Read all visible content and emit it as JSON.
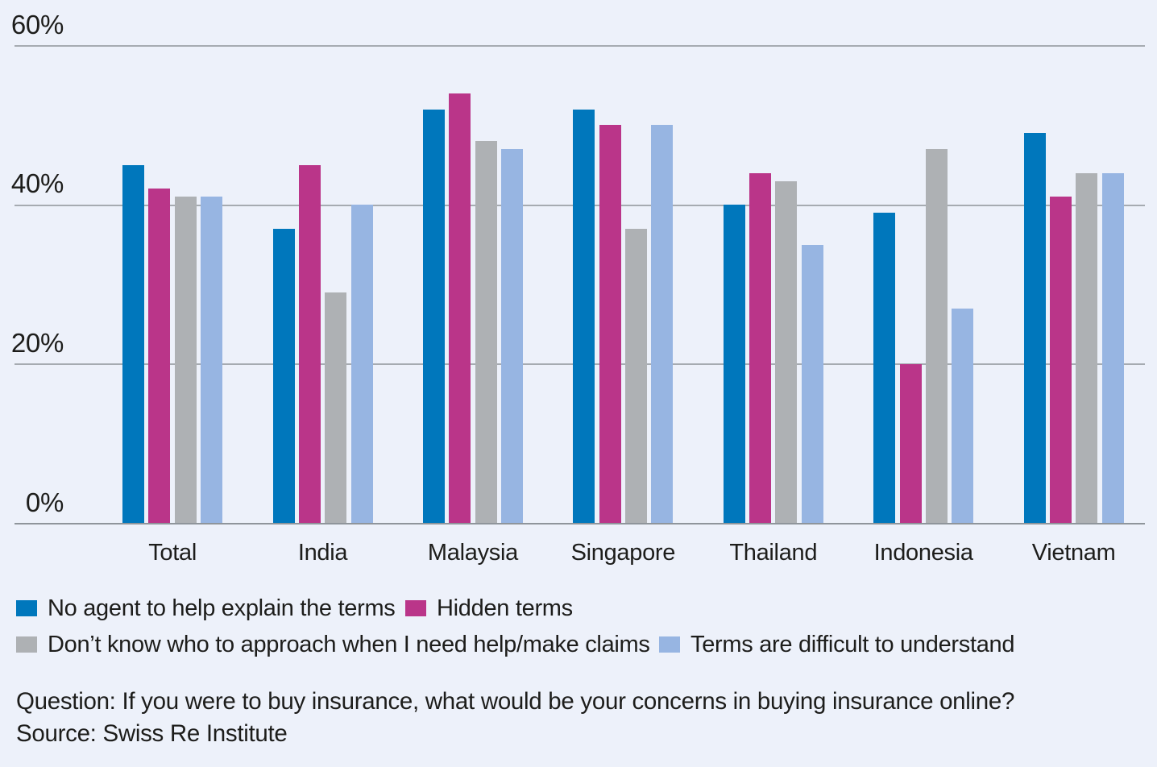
{
  "chart_data": {
    "type": "bar",
    "title": "",
    "categories": [
      "Total",
      "India",
      "Malaysia",
      "Singapore",
      "Thailand",
      "Indonesia",
      "Vietnam"
    ],
    "series": [
      {
        "name": "No agent to help explain the terms",
        "color": "#0077bc",
        "values": [
          45,
          37,
          52,
          52,
          40,
          39,
          49
        ]
      },
      {
        "name": "Hidden terms",
        "color": "#ba3589",
        "values": [
          42,
          45,
          54,
          50,
          44,
          20,
          41
        ]
      },
      {
        "name": "Don’t know who to approach when I need help/make claims",
        "color": "#aeb1b4",
        "values": [
          41,
          29,
          48,
          37,
          43,
          47,
          44
        ]
      },
      {
        "name": "Terms are difficult to understand",
        "color": "#97b5e2",
        "values": [
          41,
          40,
          47,
          50,
          35,
          27,
          44
        ]
      }
    ],
    "ylim": [
      0,
      60
    ],
    "yticks": [
      0,
      20,
      40,
      60
    ],
    "ytick_labels": [
      "0%",
      "20%",
      "40%",
      "60%"
    ],
    "grid": true,
    "legend_position": "bottom"
  },
  "footer": {
    "question": "Question: If you were to buy insurance, what would be your concerns in buying insurance online?",
    "source": "Source: Swiss Re Institute"
  },
  "colors": {
    "background": "#edf1fa",
    "gridline": "#a6abb1",
    "baseline": "#8f959b",
    "text": "#1d1d1b",
    "series_blue": "#0077bc",
    "series_magenta": "#ba3589",
    "series_gray": "#aeb1b4",
    "series_lightblue": "#97b5e2"
  }
}
